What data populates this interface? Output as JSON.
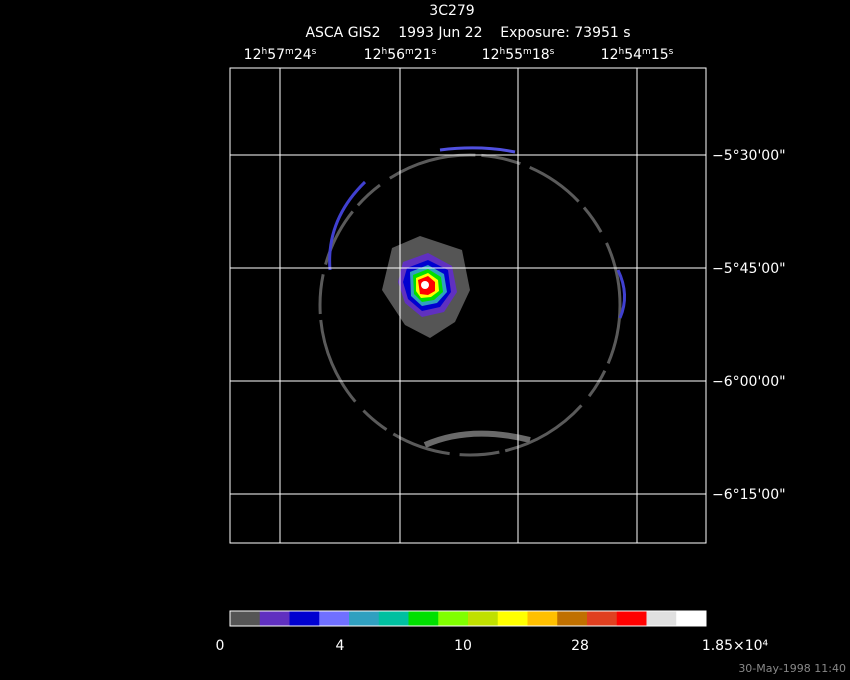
{
  "header": {
    "title": "3C279",
    "subtitle": "ASCA GIS2    1993 Jun 22    Exposure: 73951 s"
  },
  "ra_labels": [
    "12h57m24s",
    "12h56m21s",
    "12h55m18s",
    "12h54m15s"
  ],
  "dec_labels": [
    "−5°30'00\"",
    "−5°45'00\"",
    "−6°00'00\"",
    "−6°15'00\""
  ],
  "colorbar": {
    "colors": [
      "#555555",
      "#6030c0",
      "#0000d0",
      "#7070ff",
      "#30a0c0",
      "#00c0a0",
      "#00e000",
      "#80ff00",
      "#c0e000",
      "#ffff00",
      "#ffc000",
      "#c07000",
      "#e04020",
      "#ff0000",
      "#e0e0e0",
      "#ffffff"
    ],
    "labels": [
      "0",
      "4",
      "10",
      "28",
      "1.85×10⁴"
    ]
  },
  "timestamp": "30-May-1998 11:40"
}
